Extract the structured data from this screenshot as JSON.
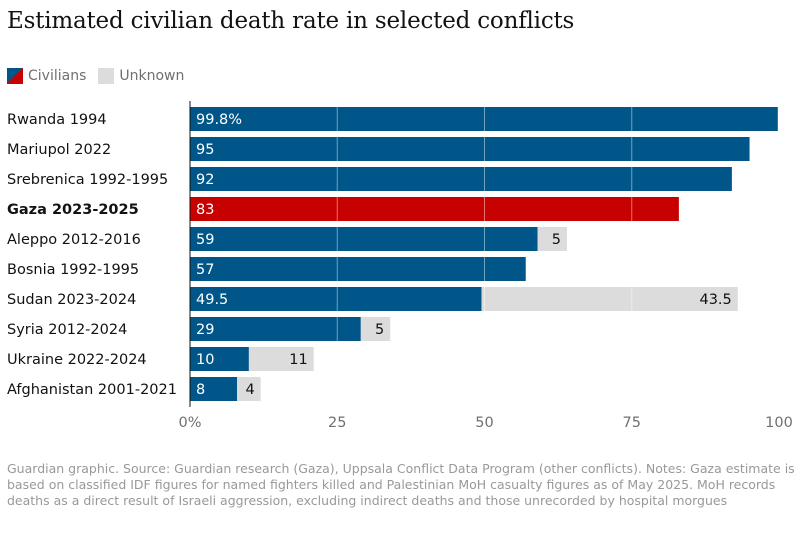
{
  "title": "Estimated civilian death rate in selected conflicts",
  "legend": [
    {
      "label": "Civilians",
      "icon": "civilians-swatch"
    },
    {
      "label": "Unknown",
      "icon": "unknown-swatch"
    }
  ],
  "colors": {
    "civilians": "#005689",
    "highlight": "#c70000",
    "unknown": "#dcdcdc",
    "axis_text": "#707070"
  },
  "chart_data": {
    "type": "bar",
    "orientation": "horizontal",
    "stacked": true,
    "categories": [
      "Rwanda 1994",
      "Mariupol 2022",
      "Srebrenica 1992-1995",
      "Gaza 2023-2025",
      "Aleppo 2012-2016",
      "Bosnia 1992-1995",
      "Sudan 2023-2024",
      "Syria 2012-2024",
      "Ukraine 2022-2024",
      "Afghanistan 2001-2021"
    ],
    "highlight_category": "Gaza 2023-2025",
    "series": [
      {
        "name": "Civilians",
        "values": [
          99.8,
          95,
          92,
          83,
          59,
          57,
          49.5,
          29,
          10,
          8
        ],
        "labels": [
          "99.8%",
          "95",
          "92",
          "83",
          "59",
          "57",
          "49.5",
          "29",
          "10",
          "8"
        ]
      },
      {
        "name": "Unknown",
        "values": [
          null,
          null,
          null,
          null,
          5,
          null,
          43.5,
          5,
          11,
          4
        ],
        "labels": [
          "",
          "",
          "",
          "",
          "5",
          "",
          "43.5",
          "5",
          "11",
          "4"
        ]
      }
    ],
    "xlim": [
      0,
      100
    ],
    "xticks": [
      0,
      25,
      50,
      75,
      100
    ],
    "xtick_labels": [
      "0%",
      "25",
      "50",
      "75",
      "100"
    ],
    "grid": true
  },
  "footer": "Guardian graphic. Source: Guardian research (Gaza), Uppsala Conflict Data Program (other conflicts). Notes: Gaza estimate is based on classified IDF figures for named fighters killed and Palestinian MoH casualty figures as of May 2025. MoH records deaths as a direct result of Israeli aggression, excluding indirect deaths and those unrecorded by hospital morgues"
}
